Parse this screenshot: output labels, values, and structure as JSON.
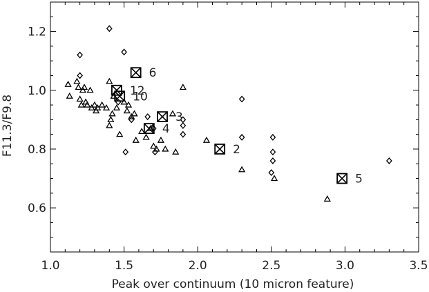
{
  "chart_data": {
    "type": "scatter",
    "title": "",
    "xlabel": "Peak over continuum (10 micron feature)",
    "ylabel": "F11.3/F9.8",
    "xlim": [
      1.0,
      3.5
    ],
    "ylim": [
      0.45,
      1.3
    ],
    "xticks": [
      "1.0",
      "1.5",
      "2.0",
      "2.5",
      "3.0",
      "3.5"
    ],
    "yticks": [
      "0.6",
      "0.8",
      "1.0",
      "1.2"
    ],
    "grid": false,
    "legend": "none",
    "color": "#000000",
    "series": [
      {
        "marker": "triangle",
        "points": [
          {
            "x": 1.12,
            "y": 1.02
          },
          {
            "x": 1.13,
            "y": 0.98
          },
          {
            "x": 1.18,
            "y": 1.03
          },
          {
            "x": 1.19,
            "y": 1.01
          },
          {
            "x": 1.2,
            "y": 0.97
          },
          {
            "x": 1.21,
            "y": 0.95
          },
          {
            "x": 1.22,
            "y": 1.0
          },
          {
            "x": 1.23,
            "y": 1.01
          },
          {
            "x": 1.24,
            "y": 0.96
          },
          {
            "x": 1.25,
            "y": 0.95
          },
          {
            "x": 1.27,
            "y": 1.0
          },
          {
            "x": 1.28,
            "y": 0.94
          },
          {
            "x": 1.3,
            "y": 0.95
          },
          {
            "x": 1.31,
            "y": 0.93
          },
          {
            "x": 1.32,
            "y": 0.94
          },
          {
            "x": 1.35,
            "y": 0.95
          },
          {
            "x": 1.38,
            "y": 0.94
          },
          {
            "x": 1.4,
            "y": 1.03
          },
          {
            "x": 1.4,
            "y": 0.88
          },
          {
            "x": 1.41,
            "y": 0.9
          },
          {
            "x": 1.42,
            "y": 0.92
          },
          {
            "x": 1.43,
            "y": 0.98
          },
          {
            "x": 1.45,
            "y": 0.94
          },
          {
            "x": 1.47,
            "y": 0.85
          },
          {
            "x": 1.5,
            "y": 0.96
          },
          {
            "x": 1.52,
            "y": 0.93
          },
          {
            "x": 1.53,
            "y": 0.95
          },
          {
            "x": 1.55,
            "y": 0.91
          },
          {
            "x": 1.57,
            "y": 0.92
          },
          {
            "x": 1.58,
            "y": 0.83
          },
          {
            "x": 1.62,
            "y": 0.86
          },
          {
            "x": 1.65,
            "y": 0.84
          },
          {
            "x": 1.68,
            "y": 0.87
          },
          {
            "x": 1.7,
            "y": 0.81
          },
          {
            "x": 1.72,
            "y": 0.8
          },
          {
            "x": 1.75,
            "y": 0.83
          },
          {
            "x": 1.78,
            "y": 0.8
          },
          {
            "x": 1.83,
            "y": 0.92
          },
          {
            "x": 1.85,
            "y": 0.79
          },
          {
            "x": 1.9,
            "y": 1.01
          },
          {
            "x": 2.06,
            "y": 0.83
          },
          {
            "x": 2.3,
            "y": 0.73
          },
          {
            "x": 2.52,
            "y": 0.7
          },
          {
            "x": 2.88,
            "y": 0.63
          }
        ]
      },
      {
        "marker": "diamond",
        "points": [
          {
            "x": 1.2,
            "y": 1.12
          },
          {
            "x": 1.2,
            "y": 1.05
          },
          {
            "x": 1.4,
            "y": 1.21
          },
          {
            "x": 1.46,
            "y": 0.96
          },
          {
            "x": 1.5,
            "y": 1.13
          },
          {
            "x": 1.51,
            "y": 0.79
          },
          {
            "x": 1.55,
            "y": 0.9
          },
          {
            "x": 1.66,
            "y": 0.91
          },
          {
            "x": 1.7,
            "y": 0.87
          },
          {
            "x": 1.71,
            "y": 0.79
          },
          {
            "x": 1.9,
            "y": 0.9
          },
          {
            "x": 1.9,
            "y": 0.88
          },
          {
            "x": 1.9,
            "y": 0.85
          },
          {
            "x": 2.3,
            "y": 0.97
          },
          {
            "x": 2.3,
            "y": 0.84
          },
          {
            "x": 2.51,
            "y": 0.84
          },
          {
            "x": 2.51,
            "y": 0.79
          },
          {
            "x": 2.51,
            "y": 0.76
          },
          {
            "x": 2.5,
            "y": 0.72
          },
          {
            "x": 3.3,
            "y": 0.76
          }
        ]
      },
      {
        "marker": "boxed-x",
        "points": [
          {
            "x": 1.58,
            "y": 1.06,
            "label": "6"
          },
          {
            "x": 1.45,
            "y": 1.0,
            "label": "12"
          },
          {
            "x": 1.47,
            "y": 0.98,
            "label": "10"
          },
          {
            "x": 1.76,
            "y": 0.91,
            "label": "3"
          },
          {
            "x": 1.67,
            "y": 0.87,
            "label": "4"
          },
          {
            "x": 2.15,
            "y": 0.8,
            "label": "2"
          },
          {
            "x": 2.98,
            "y": 0.7,
            "label": "5"
          }
        ]
      }
    ]
  }
}
